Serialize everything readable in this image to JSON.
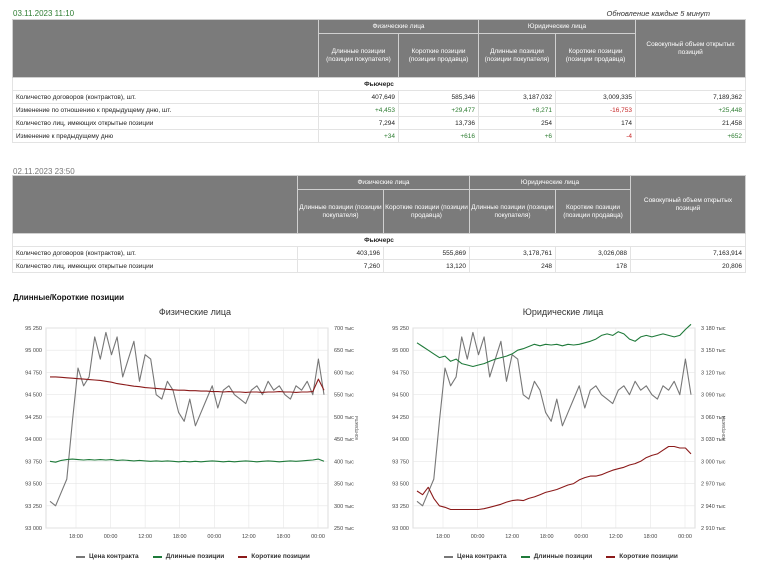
{
  "header": {
    "timestamp1": "03.11.2023 11:10",
    "refresh_note": "Обновление каждые 5 минут",
    "timestamp2": "02.11.2023 23:50"
  },
  "columns": {
    "individuals": "Физические лица",
    "legal": "Юридические лица",
    "long": "Длинные позиции (позиции покупателя)",
    "short": "Короткие позиции (позиции продавца)",
    "total": "Совокупный объем открытых позиций",
    "section": "Фьючерс"
  },
  "table1": {
    "rows": [
      {
        "label": "Количество договоров (контрактов), шт.",
        "ind_long": "407,649",
        "ind_short": "585,346",
        "leg_long": "3,187,032",
        "leg_short": "3,009,335",
        "total": "7,189,362"
      },
      {
        "label": "Изменение по отношению к предыдущему дню, шт.",
        "ind_long": "+4,453",
        "ind_short": "+29,477",
        "leg_long": "+8,271",
        "leg_short": "-16,753",
        "total": "+25,448"
      },
      {
        "label": "Количество лиц, имеющих открытые позиции",
        "ind_long": "7,294",
        "ind_short": "13,736",
        "leg_long": "254",
        "leg_short": "174",
        "total": "21,458"
      },
      {
        "label": "Изменение к предыдущему дню",
        "ind_long": "+34",
        "ind_short": "+616",
        "leg_long": "+6",
        "leg_short": "-4",
        "total": "+652"
      }
    ]
  },
  "table2": {
    "rows": [
      {
        "label": "Количество договоров (контрактов), шт.",
        "ind_long": "403,196",
        "ind_short": "555,869",
        "leg_long": "3,178,761",
        "leg_short": "3,026,088",
        "total": "7,163,914"
      },
      {
        "label": "Количество лиц, имеющих открытые позиции",
        "ind_long": "7,260",
        "ind_short": "13,120",
        "leg_long": "248",
        "leg_short": "178",
        "total": "20,806"
      }
    ]
  },
  "section_title": "Длинные/Короткие позиции",
  "colors": {
    "price": "#777777",
    "long": "#1f7a3a",
    "short": "#8b1a1a",
    "header_bg": "#7b7b7b",
    "positive": "#2e7d32",
    "negative": "#c62828"
  },
  "legend": {
    "price": "Цена контракта",
    "long": "Длинные позиции",
    "short": "Короткие позиции"
  },
  "chart_data": [
    {
      "type": "line",
      "title": "Физические лица",
      "x_ticks": [
        "18:00",
        "00:00",
        "12:00",
        "18:00",
        "00:00",
        "12:00",
        "18:00",
        "00:00"
      ],
      "y_left_ticks": [
        "93 000",
        "93 250",
        "93 500",
        "93 750",
        "94 000",
        "94 250",
        "94 500",
        "94 750",
        "95 000",
        "95 250"
      ],
      "y_left_range": [
        93000,
        95250
      ],
      "y_right_ticks": [
        "250 тыс",
        "300 тыс",
        "350 тыс",
        "400 тыс",
        "450 тыс",
        "500 тыс",
        "550 тыс",
        "600 тыс",
        "650 тыс",
        "700 тыс"
      ],
      "y_right_range": [
        250000,
        700000
      ],
      "y_right_label": "контракты",
      "series": [
        {
          "name": "Цена контракта",
          "axis": "left",
          "values": [
            93300,
            93250,
            93400,
            93550,
            94200,
            94800,
            94600,
            94700,
            95150,
            94900,
            95200,
            94950,
            95150,
            94700,
            94900,
            95100,
            94650,
            94950,
            94900,
            94500,
            94450,
            94650,
            94550,
            94300,
            94200,
            94450,
            94150,
            94300,
            94450,
            94600,
            94350,
            94550,
            94600,
            94500,
            94450,
            94400,
            94550,
            94600,
            94500,
            94650,
            94550,
            94600,
            94500,
            94450,
            94600,
            94550,
            94650,
            94500,
            94900,
            94500
          ]
        },
        {
          "name": "Длинные позиции",
          "axis": "right",
          "values": [
            400000,
            398000,
            402000,
            404000,
            405000,
            404000,
            403000,
            404000,
            403000,
            404000,
            403000,
            404000,
            402000,
            403000,
            402000,
            401000,
            402000,
            401000,
            400000,
            401000,
            400000,
            401000,
            400000,
            399000,
            400000,
            399000,
            400000,
            399000,
            400000,
            401000,
            400000,
            399000,
            400000,
            399000,
            400000,
            401000,
            400000,
            399000,
            400000,
            401000,
            400000,
            399000,
            400000,
            401000,
            400000,
            401000,
            402000,
            403000,
            405000,
            400000
          ]
        },
        {
          "name": "Короткие позиции",
          "axis": "right",
          "values": [
            590000,
            590000,
            589000,
            588000,
            587000,
            586000,
            585000,
            584000,
            583000,
            582000,
            580000,
            578000,
            575000,
            573000,
            571000,
            569000,
            568000,
            566000,
            565000,
            564000,
            563000,
            562000,
            561000,
            560000,
            560000,
            559000,
            559000,
            558000,
            558000,
            557000,
            557000,
            556000,
            557000,
            556000,
            556000,
            555000,
            556000,
            556000,
            555000,
            556000,
            556000,
            557000,
            556000,
            556000,
            555000,
            556000,
            556000,
            557000,
            585000,
            560000
          ]
        }
      ]
    },
    {
      "type": "line",
      "title": "Юридические лица",
      "x_ticks": [
        "18:00",
        "00:00",
        "12:00",
        "18:00",
        "00:00",
        "12:00",
        "18:00",
        "00:00"
      ],
      "y_left_ticks": [
        "93 000",
        "93 250",
        "93 500",
        "93 750",
        "94 000",
        "94 250",
        "94 500",
        "94 750",
        "95 000",
        "95 250"
      ],
      "y_left_range": [
        93000,
        95250
      ],
      "y_right_ticks": [
        "2 910 тыс",
        "2 940 тыс",
        "2 970 тыс",
        "3 000 тыс",
        "3 030 тыс",
        "3 060 тыс",
        "3 090 тыс",
        "3 120 тыс",
        "3 150 тыс",
        "3 180 тыс"
      ],
      "y_right_range": [
        2910000,
        3180000
      ],
      "y_right_label": "контракты",
      "series": [
        {
          "name": "Цена контракта",
          "axis": "left",
          "values": [
            93300,
            93250,
            93400,
            93550,
            94200,
            94800,
            94600,
            94700,
            95150,
            94900,
            95200,
            94950,
            95150,
            94700,
            94900,
            95100,
            94650,
            94950,
            94900,
            94500,
            94450,
            94650,
            94550,
            94300,
            94200,
            94450,
            94150,
            94300,
            94450,
            94600,
            94350,
            94550,
            94600,
            94500,
            94450,
            94400,
            94550,
            94600,
            94500,
            94650,
            94550,
            94600,
            94500,
            94450,
            94600,
            94550,
            94650,
            94500,
            94900,
            94500
          ]
        },
        {
          "name": "Длинные позиции",
          "axis": "right",
          "values": [
            3160000,
            3155000,
            3150000,
            3145000,
            3140000,
            3142000,
            3135000,
            3138000,
            3132000,
            3130000,
            3128000,
            3130000,
            3132000,
            3135000,
            3138000,
            3140000,
            3142000,
            3145000,
            3150000,
            3152000,
            3155000,
            3158000,
            3156000,
            3158000,
            3157000,
            3158000,
            3156000,
            3158000,
            3157000,
            3158000,
            3160000,
            3162000,
            3165000,
            3170000,
            3172000,
            3170000,
            3175000,
            3172000,
            3165000,
            3162000,
            3168000,
            3170000,
            3168000,
            3170000,
            3172000,
            3170000,
            3168000,
            3170000,
            3178000,
            3185000
          ]
        },
        {
          "name": "Короткие позиции",
          "axis": "right",
          "values": [
            2960000,
            2955000,
            2965000,
            2950000,
            2940000,
            2938000,
            2935000,
            2935000,
            2935000,
            2935000,
            2935000,
            2935000,
            2936000,
            2938000,
            2940000,
            2942000,
            2945000,
            2947000,
            2948000,
            2947000,
            2950000,
            2952000,
            2955000,
            2958000,
            2960000,
            2962000,
            2965000,
            2968000,
            2970000,
            2975000,
            2978000,
            2980000,
            2980000,
            2982000,
            2985000,
            2988000,
            2990000,
            2992000,
            2995000,
            2997000,
            3000000,
            3005000,
            3008000,
            3010000,
            3015000,
            3020000,
            3020000,
            3018000,
            3018000,
            3010000
          ]
        }
      ]
    }
  ]
}
